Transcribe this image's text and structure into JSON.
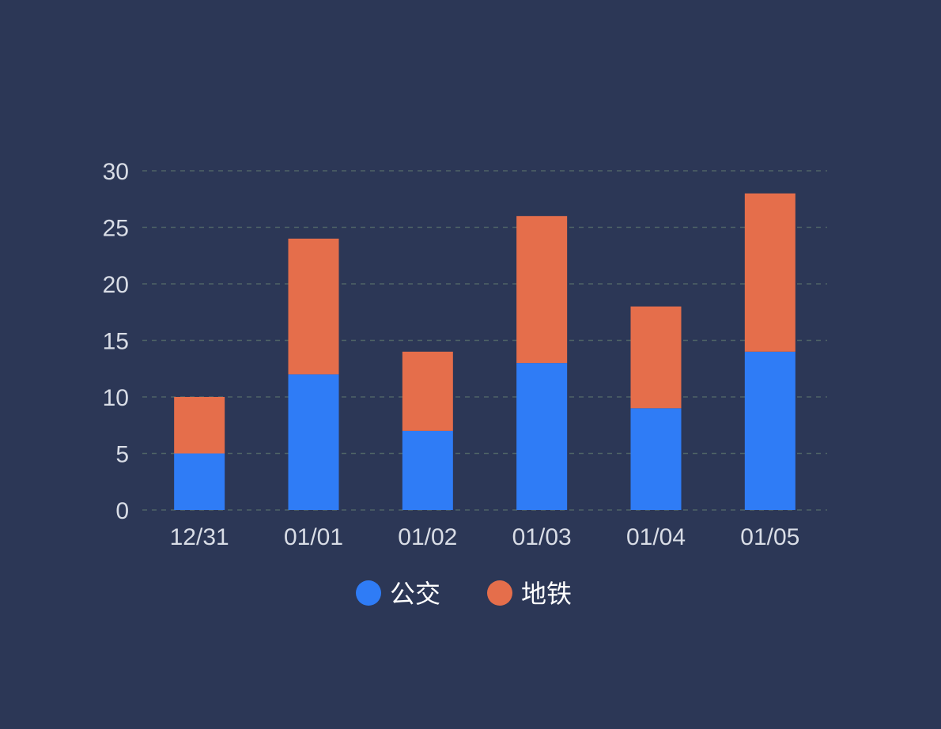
{
  "chart_data": {
    "type": "bar",
    "stacked": true,
    "categories": [
      "12/31",
      "01/01",
      "01/02",
      "01/03",
      "01/04",
      "01/05"
    ],
    "series": [
      {
        "name": "公交",
        "values": [
          5,
          12,
          7,
          13,
          9,
          14
        ],
        "color": "#2f7cf6"
      },
      {
        "name": "地铁",
        "values": [
          5,
          12,
          7,
          13,
          9,
          14
        ],
        "color": "#e56e4b"
      }
    ],
    "ylim": [
      0,
      30
    ],
    "yticks": [
      0,
      5,
      10,
      15,
      20,
      25,
      30
    ],
    "grid": true,
    "grid_color": "#4f6466",
    "background": "#2c3756",
    "legend_position": "bottom-center"
  }
}
